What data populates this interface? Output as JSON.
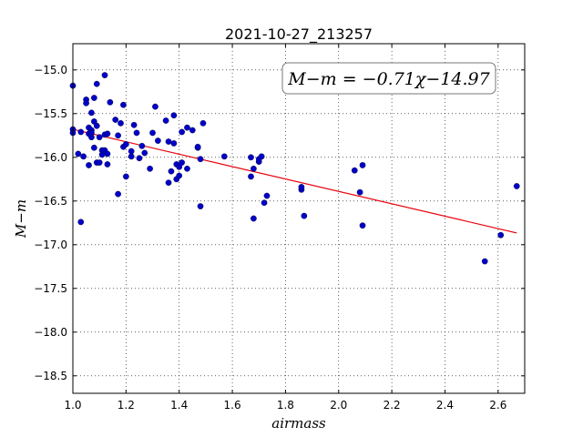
{
  "chart_data": {
    "type": "scatter",
    "title": "2021-10-27_213257",
    "xlabel": "airmass",
    "ylabel": "M−m",
    "xlim": [
      1.0,
      2.7
    ],
    "ylim": [
      -18.7,
      -14.7
    ],
    "y_inverted": true,
    "x_ticks": [
      1.0,
      1.2,
      1.4,
      1.6,
      1.8,
      2.0,
      2.2,
      2.4,
      2.6
    ],
    "x_tick_labels": [
      "1.0",
      "1.2",
      "1.4",
      "1.6",
      "1.8",
      "2.0",
      "2.2",
      "2.4",
      "2.6"
    ],
    "y_ticks": [
      -15.0,
      -15.5,
      -16.0,
      -16.5,
      -17.0,
      -17.5,
      -18.0,
      -18.5
    ],
    "y_tick_labels": [
      "−15.0",
      "−15.5",
      "−16.0",
      "−16.5",
      "−17.0",
      "−17.5",
      "−18.0",
      "−18.5"
    ],
    "grid": true,
    "annotation": "M−m = −0.71χ−14.97",
    "fit": {
      "slope": -0.71,
      "intercept": -14.97,
      "x_range": [
        1.0,
        2.67
      ],
      "color": "#e8000b"
    },
    "point_color": "#0000c8",
    "points": [
      [
        1.0,
        -15.18
      ],
      [
        1.0,
        -15.68
      ],
      [
        1.0,
        -15.72
      ],
      [
        1.02,
        -15.96
      ],
      [
        1.03,
        -16.74
      ],
      [
        1.03,
        -15.71
      ],
      [
        1.04,
        -15.99
      ],
      [
        1.05,
        -15.34
      ],
      [
        1.05,
        -15.38
      ],
      [
        1.06,
        -15.66
      ],
      [
        1.06,
        -16.09
      ],
      [
        1.06,
        -15.73
      ],
      [
        1.07,
        -15.69
      ],
      [
        1.07,
        -15.77
      ],
      [
        1.07,
        -15.49
      ],
      [
        1.07,
        -15.72
      ],
      [
        1.08,
        -15.32
      ],
      [
        1.08,
        -15.59
      ],
      [
        1.08,
        -15.89
      ],
      [
        1.09,
        -15.64
      ],
      [
        1.09,
        -15.16
      ],
      [
        1.09,
        -16.06
      ],
      [
        1.1,
        -15.77
      ],
      [
        1.1,
        -16.06
      ],
      [
        1.11,
        -15.92
      ],
      [
        1.11,
        -15.97
      ],
      [
        1.12,
        -15.74
      ],
      [
        1.12,
        -15.92
      ],
      [
        1.12,
        -15.06
      ],
      [
        1.13,
        -15.96
      ],
      [
        1.13,
        -16.08
      ],
      [
        1.13,
        -15.73
      ],
      [
        1.14,
        -15.37
      ],
      [
        1.16,
        -15.57
      ],
      [
        1.17,
        -15.75
      ],
      [
        1.17,
        -16.42
      ],
      [
        1.18,
        -15.61
      ],
      [
        1.19,
        -15.88
      ],
      [
        1.19,
        -15.4
      ],
      [
        1.2,
        -16.22
      ],
      [
        1.2,
        -15.85
      ],
      [
        1.22,
        -15.99
      ],
      [
        1.22,
        -15.93
      ],
      [
        1.23,
        -15.63
      ],
      [
        1.24,
        -15.72
      ],
      [
        1.25,
        -16.01
      ],
      [
        1.26,
        -15.87
      ],
      [
        1.27,
        -15.95
      ],
      [
        1.29,
        -16.13
      ],
      [
        1.3,
        -15.72
      ],
      [
        1.31,
        -15.42
      ],
      [
        1.32,
        -15.81
      ],
      [
        1.35,
        -15.58
      ],
      [
        1.36,
        -15.82
      ],
      [
        1.36,
        -16.29
      ],
      [
        1.37,
        -16.16
      ],
      [
        1.38,
        -15.84
      ],
      [
        1.38,
        -15.52
      ],
      [
        1.39,
        -16.08
      ],
      [
        1.39,
        -16.25
      ],
      [
        1.4,
        -16.11
      ],
      [
        1.4,
        -16.21
      ],
      [
        1.41,
        -16.06
      ],
      [
        1.41,
        -15.71
      ],
      [
        1.43,
        -16.13
      ],
      [
        1.43,
        -15.66
      ],
      [
        1.45,
        -15.69
      ],
      [
        1.47,
        -15.89
      ],
      [
        1.47,
        -15.88
      ],
      [
        1.48,
        -16.02
      ],
      [
        1.48,
        -16.56
      ],
      [
        1.49,
        -15.61
      ],
      [
        1.57,
        -15.99
      ],
      [
        1.67,
        -16.0
      ],
      [
        1.67,
        -16.22
      ],
      [
        1.68,
        -16.7
      ],
      [
        1.68,
        -16.13
      ],
      [
        1.7,
        -16.05
      ],
      [
        1.7,
        -16.02
      ],
      [
        1.71,
        -15.99
      ],
      [
        1.72,
        -16.52
      ],
      [
        1.73,
        -16.44
      ],
      [
        1.86,
        -16.37
      ],
      [
        1.86,
        -16.34
      ],
      [
        1.87,
        -16.67
      ],
      [
        2.06,
        -16.15
      ],
      [
        2.08,
        -16.4
      ],
      [
        2.09,
        -16.78
      ],
      [
        2.09,
        -16.09
      ],
      [
        2.55,
        -17.19
      ],
      [
        2.61,
        -16.89
      ],
      [
        2.67,
        -16.33
      ]
    ]
  }
}
